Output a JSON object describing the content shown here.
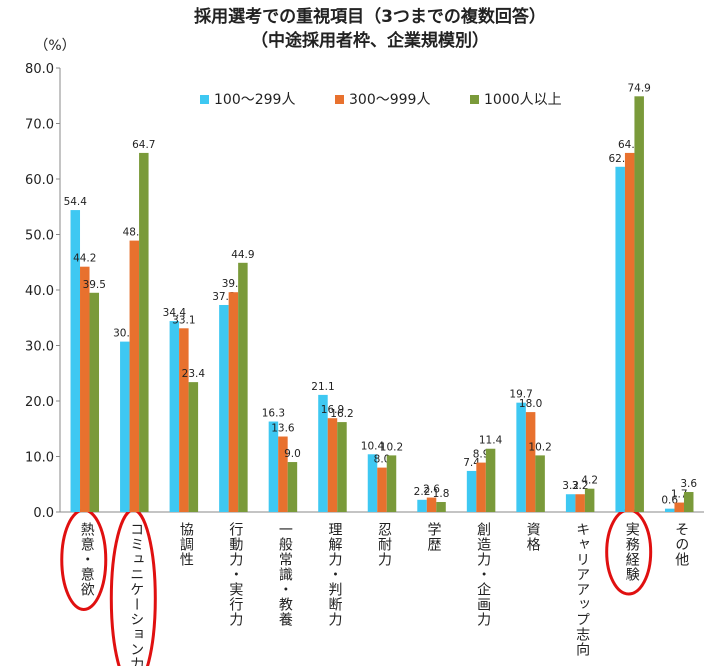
{
  "chart_data": {
    "type": "bar",
    "title": "採用選考での重視項目（3つまでの複数回答）",
    "subtitle": "（中途採用者枠、企業規模別）",
    "y_unit": "（%）",
    "categories": [
      "熱意・意欲",
      "コミュニケーション力",
      "協調性",
      "行動力・実行力",
      "一般常識・教養",
      "理解力・判断力",
      "忍耐力",
      "学歴",
      "創造力・企画力",
      "資格",
      "キャリアアップ志向",
      "実務経験",
      "その他"
    ],
    "series": [
      {
        "name": "100〜299人",
        "color": "#3ec8f2",
        "values": [
          54.4,
          30.7,
          34.4,
          37.3,
          16.3,
          21.1,
          10.4,
          2.2,
          7.4,
          19.7,
          3.2,
          62.2,
          0.6
        ],
        "value_labels": [
          "54.4",
          "30.7",
          "34.4",
          "37.3",
          "16.3",
          "21.1",
          "10.4",
          "2.2",
          "7.4",
          "19.7",
          "3.2",
          "62.2",
          "0.6"
        ]
      },
      {
        "name": "300〜999人",
        "color": "#e8712e",
        "values": [
          44.2,
          48.9,
          33.1,
          39.6,
          13.6,
          16.9,
          8.0,
          2.6,
          8.9,
          18.0,
          3.2,
          64.7,
          1.7
        ],
        "value_labels": [
          "44.2",
          "48.9",
          "33.1",
          "39.6",
          "13.6",
          "16.9",
          "8.0",
          "2.6",
          "8.9",
          "18.0",
          "3.2",
          "64.7",
          "1.7"
        ]
      },
      {
        "name": "1000人以上",
        "color": "#7a9a3a",
        "values": [
          39.5,
          64.7,
          23.4,
          44.9,
          9.0,
          16.2,
          10.2,
          1.8,
          11.4,
          10.2,
          4.2,
          74.9,
          3.6
        ],
        "value_labels": [
          "39.5",
          "64.7",
          "23.4",
          "44.9",
          "9.0",
          "16.2",
          "10.2",
          "1.8",
          "11.4",
          "10.2",
          "4.2",
          "74.9",
          "3.6"
        ]
      }
    ],
    "ylim": [
      0,
      80
    ],
    "yticks": [
      {
        "value": 0,
        "label": "0.0"
      },
      {
        "value": 10,
        "label": "10.0"
      },
      {
        "value": 20,
        "label": "20.0"
      },
      {
        "value": 30,
        "label": "30.0"
      },
      {
        "value": 40,
        "label": "40.0"
      },
      {
        "value": 50,
        "label": "50.0"
      },
      {
        "value": 60,
        "label": "60.0"
      },
      {
        "value": 70,
        "label": "70.0"
      },
      {
        "value": 80,
        "label": "80.0"
      }
    ],
    "grid": false,
    "legend": "top",
    "highlighted_categories": [
      0,
      1,
      11
    ],
    "highlight_color": "#e01010"
  }
}
